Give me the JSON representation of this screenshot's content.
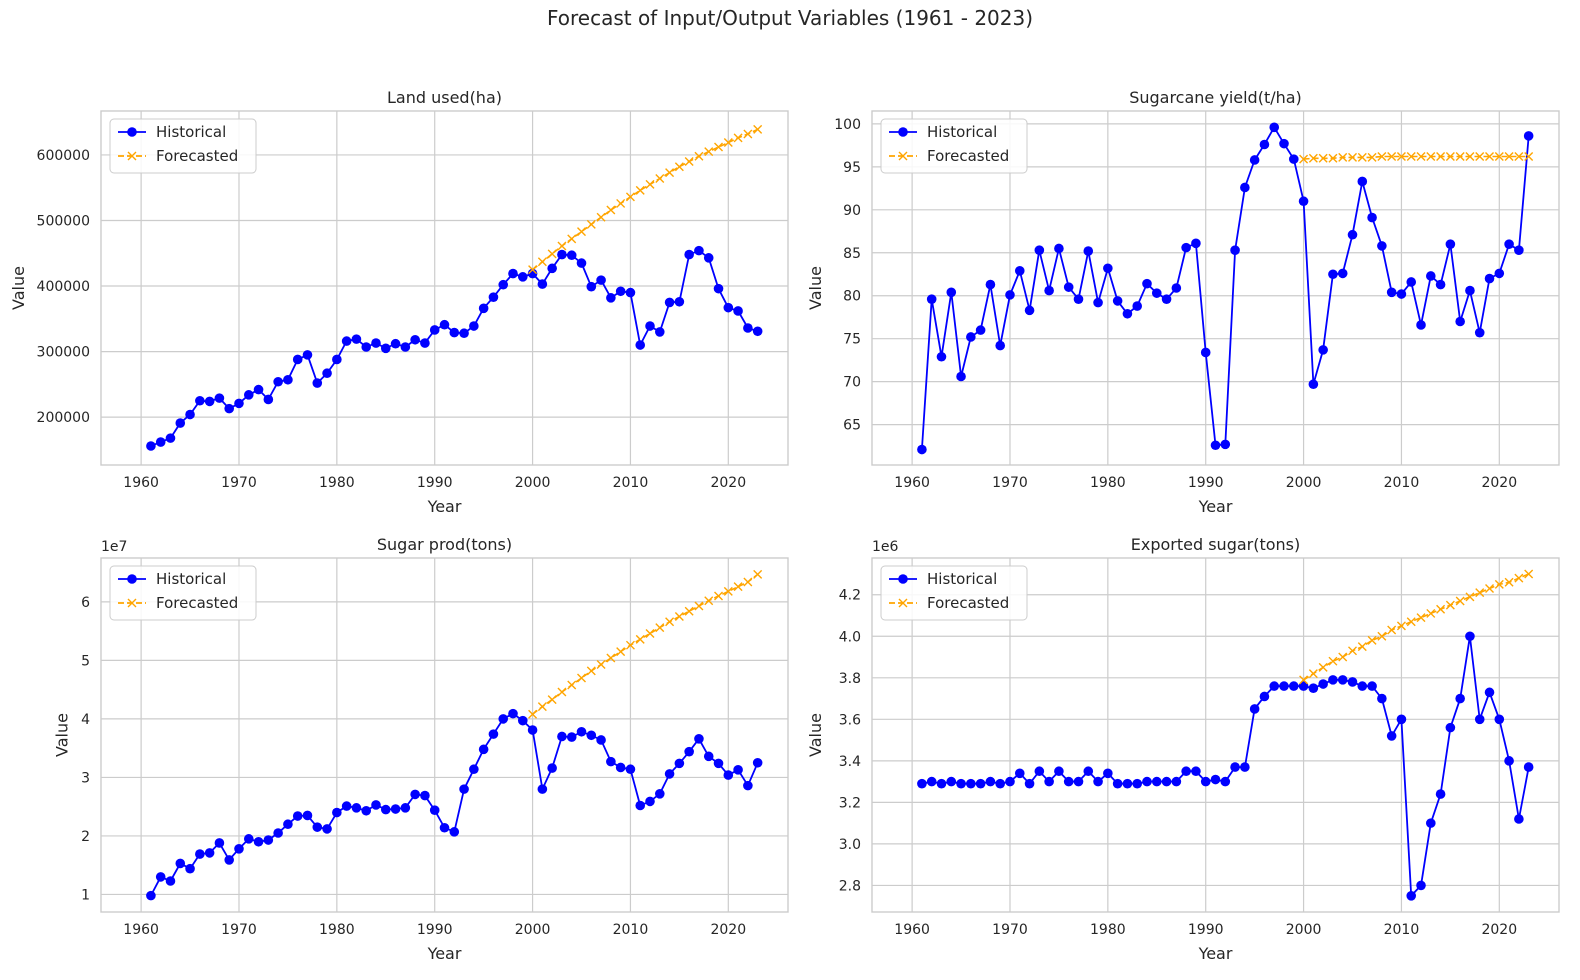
{
  "figure_title": "Forecast of Input/Output Variables (1961 - 2023)",
  "chart_data": [
    {
      "type": "line",
      "title": "Land used(ha)",
      "xlabel": "Year",
      "ylabel": "Value",
      "offset_label": "",
      "xlim": [
        1955.9,
        2026.1
      ],
      "ylim": [
        127000,
        667000
      ],
      "xticks": [
        1960,
        1970,
        1980,
        1990,
        2000,
        2010,
        2020
      ],
      "xtick_labels": [
        "1960",
        "1970",
        "1980",
        "1990",
        "2000",
        "2010",
        "2020"
      ],
      "yticks": [
        200000,
        300000,
        400000,
        500000,
        600000
      ],
      "ytick_labels": [
        "200000",
        "300000",
        "400000",
        "500000",
        "600000"
      ],
      "grid": true,
      "legend": "upper-left",
      "series": [
        {
          "name": "Historical",
          "color": "#0000ff",
          "marker": "circle",
          "linestyle": "solid",
          "x": [
            1961,
            1962,
            1963,
            1964,
            1965,
            1966,
            1967,
            1968,
            1969,
            1970,
            1971,
            1972,
            1973,
            1974,
            1975,
            1976,
            1977,
            1978,
            1979,
            1980,
            1981,
            1982,
            1983,
            1984,
            1985,
            1986,
            1987,
            1988,
            1989,
            1990,
            1991,
            1992,
            1993,
            1994,
            1995,
            1996,
            1997,
            1998,
            1999,
            2000,
            2001,
            2002,
            2003,
            2004,
            2005,
            2006,
            2007,
            2008,
            2009,
            2010,
            2011,
            2012,
            2013,
            2014,
            2015,
            2016,
            2017,
            2018,
            2019,
            2020,
            2021,
            2022,
            2023
          ],
          "y": [
            156000,
            162000,
            168000,
            191000,
            204000,
            225000,
            224000,
            229000,
            213000,
            221000,
            234000,
            242000,
            227000,
            254000,
            257000,
            288000,
            295000,
            252000,
            267000,
            288000,
            316000,
            319000,
            307000,
            313000,
            305000,
            312000,
            307000,
            318000,
            313000,
            333000,
            341000,
            329000,
            328000,
            339000,
            366000,
            383000,
            402000,
            419000,
            414000,
            419000,
            403000,
            427000,
            448000,
            447000,
            435000,
            399000,
            409000,
            382000,
            392000,
            390000,
            310000,
            339000,
            330000,
            375000,
            376000,
            448000,
            454000,
            443000,
            396000,
            367000,
            362000,
            336000,
            331000
          ]
        },
        {
          "name": "Forecasted",
          "color": "#ffa500",
          "marker": "x",
          "linestyle": "dashed",
          "x": [
            2000,
            2001,
            2002,
            2003,
            2004,
            2005,
            2006,
            2007,
            2008,
            2009,
            2010,
            2011,
            2012,
            2013,
            2014,
            2015,
            2016,
            2017,
            2018,
            2019,
            2020,
            2021,
            2022,
            2023
          ],
          "y": [
            425000,
            437000,
            449000,
            461000,
            472000,
            483000,
            494000,
            505000,
            516000,
            526000,
            536000,
            546000,
            555000,
            564000,
            573000,
            582000,
            590000,
            598000,
            605000,
            612000,
            619000,
            626000,
            632000,
            639000
          ]
        }
      ]
    },
    {
      "type": "line",
      "title": "Sugarcane yield(t/ha)",
      "xlabel": "Year",
      "ylabel": "Value",
      "offset_label": "",
      "xlim": [
        1955.9,
        2026.1
      ],
      "ylim": [
        60.3,
        101.5
      ],
      "xticks": [
        1960,
        1970,
        1980,
        1990,
        2000,
        2010,
        2020
      ],
      "xtick_labels": [
        "1960",
        "1970",
        "1980",
        "1990",
        "2000",
        "2010",
        "2020"
      ],
      "yticks": [
        65,
        70,
        75,
        80,
        85,
        90,
        95,
        100
      ],
      "ytick_labels": [
        "65",
        "70",
        "75",
        "80",
        "85",
        "90",
        "95",
        "100"
      ],
      "grid": true,
      "legend": "upper-left",
      "series": [
        {
          "name": "Historical",
          "color": "#0000ff",
          "marker": "circle",
          "linestyle": "solid",
          "x": [
            1961,
            1962,
            1963,
            1964,
            1965,
            1966,
            1967,
            1968,
            1969,
            1970,
            1971,
            1972,
            1973,
            1974,
            1975,
            1976,
            1977,
            1978,
            1979,
            1980,
            1981,
            1982,
            1983,
            1984,
            1985,
            1986,
            1987,
            1988,
            1989,
            1990,
            1991,
            1992,
            1993,
            1994,
            1995,
            1996,
            1997,
            1998,
            1999,
            2000,
            2001,
            2002,
            2003,
            2004,
            2005,
            2006,
            2007,
            2008,
            2009,
            2010,
            2011,
            2012,
            2013,
            2014,
            2015,
            2016,
            2017,
            2018,
            2019,
            2020,
            2021,
            2022,
            2023
          ],
          "y": [
            62.1,
            79.6,
            72.9,
            80.4,
            70.6,
            75.2,
            76.0,
            81.3,
            74.2,
            80.1,
            82.9,
            78.3,
            85.3,
            80.6,
            85.5,
            81.0,
            79.6,
            85.2,
            79.2,
            83.2,
            79.4,
            77.9,
            78.8,
            81.4,
            80.3,
            79.6,
            80.9,
            85.6,
            86.1,
            73.4,
            62.6,
            62.7,
            85.3,
            92.6,
            95.8,
            97.6,
            99.6,
            97.7,
            95.9,
            91.0,
            69.7,
            73.7,
            82.5,
            82.6,
            87.1,
            93.3,
            89.1,
            85.8,
            80.4,
            80.2,
            81.6,
            76.6,
            82.3,
            81.3,
            86.0,
            77.0,
            80.6,
            75.7,
            82.0,
            82.6,
            86.0,
            85.3,
            98.6
          ]
        },
        {
          "name": "Forecasted",
          "color": "#ffa500",
          "marker": "x",
          "linestyle": "dashed",
          "x": [
            2000,
            2001,
            2002,
            2003,
            2004,
            2005,
            2006,
            2007,
            2008,
            2009,
            2010,
            2011,
            2012,
            2013,
            2014,
            2015,
            2016,
            2017,
            2018,
            2019,
            2020,
            2021,
            2022,
            2023
          ],
          "y": [
            95.9,
            96.0,
            96.0,
            96.0,
            96.1,
            96.1,
            96.1,
            96.1,
            96.2,
            96.2,
            96.2,
            96.2,
            96.2,
            96.2,
            96.2,
            96.2,
            96.2,
            96.2,
            96.2,
            96.2,
            96.2,
            96.2,
            96.2,
            96.2
          ]
        }
      ]
    },
    {
      "type": "line",
      "title": "Sugar prod(tons)",
      "xlabel": "Year",
      "ylabel": "Value",
      "offset_label": "1e7",
      "xlim": [
        1955.9,
        2026.1
      ],
      "ylim": [
        0.7,
        6.75
      ],
      "xticks": [
        1960,
        1970,
        1980,
        1990,
        2000,
        2010,
        2020
      ],
      "xtick_labels": [
        "1960",
        "1970",
        "1980",
        "1990",
        "2000",
        "2010",
        "2020"
      ],
      "yticks": [
        1,
        2,
        3,
        4,
        5,
        6
      ],
      "ytick_labels": [
        "1",
        "2",
        "3",
        "4",
        "5",
        "6"
      ],
      "grid": true,
      "legend": "upper-left",
      "series": [
        {
          "name": "Historical",
          "color": "#0000ff",
          "marker": "circle",
          "linestyle": "solid",
          "x": [
            1961,
            1962,
            1963,
            1964,
            1965,
            1966,
            1967,
            1968,
            1969,
            1970,
            1971,
            1972,
            1973,
            1974,
            1975,
            1976,
            1977,
            1978,
            1979,
            1980,
            1981,
            1982,
            1983,
            1984,
            1985,
            1986,
            1987,
            1988,
            1989,
            1990,
            1991,
            1992,
            1993,
            1994,
            1995,
            1996,
            1997,
            1998,
            1999,
            2000,
            2001,
            2002,
            2003,
            2004,
            2005,
            2006,
            2007,
            2008,
            2009,
            2010,
            2011,
            2012,
            2013,
            2014,
            2015,
            2016,
            2017,
            2018,
            2019,
            2020,
            2021,
            2022,
            2023
          ],
          "y": [
            0.98,
            1.3,
            1.23,
            1.53,
            1.44,
            1.69,
            1.71,
            1.88,
            1.59,
            1.78,
            1.95,
            1.9,
            1.93,
            2.05,
            2.2,
            2.34,
            2.35,
            2.15,
            2.12,
            2.4,
            2.51,
            2.48,
            2.43,
            2.53,
            2.45,
            2.46,
            2.48,
            2.71,
            2.69,
            2.44,
            2.14,
            2.07,
            2.8,
            3.14,
            3.48,
            3.74,
            4.0,
            4.09,
            3.97,
            3.81,
            2.8,
            3.16,
            3.7,
            3.69,
            3.78,
            3.72,
            3.64,
            3.27,
            3.17,
            3.14,
            2.52,
            2.59,
            2.72,
            3.06,
            3.24,
            3.44,
            3.66,
            3.36,
            3.24,
            3.04,
            3.13,
            2.86,
            3.25
          ]
        },
        {
          "name": "Forecasted",
          "color": "#ffa500",
          "marker": "x",
          "linestyle": "dashed",
          "x": [
            2000,
            2001,
            2002,
            2003,
            2004,
            2005,
            2006,
            2007,
            2008,
            2009,
            2010,
            2011,
            2012,
            2013,
            2014,
            2015,
            2016,
            2017,
            2018,
            2019,
            2020,
            2021,
            2022,
            2023
          ],
          "y": [
            4.08,
            4.21,
            4.33,
            4.46,
            4.58,
            4.7,
            4.82,
            4.93,
            5.04,
            5.15,
            5.26,
            5.36,
            5.46,
            5.56,
            5.66,
            5.75,
            5.84,
            5.93,
            6.02,
            6.1,
            6.18,
            6.26,
            6.34,
            6.47
          ]
        }
      ]
    },
    {
      "type": "line",
      "title": "Exported sugar(tons)",
      "xlabel": "Year",
      "ylabel": "Value",
      "offset_label": "1e6",
      "xlim": [
        1955.9,
        2026.1
      ],
      "ylim": [
        2.672,
        4.377
      ],
      "xticks": [
        1960,
        1970,
        1980,
        1990,
        2000,
        2010,
        2020
      ],
      "xtick_labels": [
        "1960",
        "1970",
        "1980",
        "1990",
        "2000",
        "2010",
        "2020"
      ],
      "yticks": [
        2.8,
        3.0,
        3.2,
        3.4,
        3.6,
        3.8,
        4.0,
        4.2
      ],
      "ytick_labels": [
        "2.8",
        "3.0",
        "3.2",
        "3.4",
        "3.6",
        "3.8",
        "4.0",
        "4.2"
      ],
      "grid": true,
      "legend": "upper-left",
      "series": [
        {
          "name": "Historical",
          "color": "#0000ff",
          "marker": "circle",
          "linestyle": "solid",
          "x": [
            1961,
            1962,
            1963,
            1964,
            1965,
            1966,
            1967,
            1968,
            1969,
            1970,
            1971,
            1972,
            1973,
            1974,
            1975,
            1976,
            1977,
            1978,
            1979,
            1980,
            1981,
            1982,
            1983,
            1984,
            1985,
            1986,
            1987,
            1988,
            1989,
            1990,
            1991,
            1992,
            1993,
            1994,
            1995,
            1996,
            1997,
            1998,
            1999,
            2000,
            2001,
            2002,
            2003,
            2004,
            2005,
            2006,
            2007,
            2008,
            2009,
            2010,
            2011,
            2012,
            2013,
            2014,
            2015,
            2016,
            2017,
            2018,
            2019,
            2020,
            2021,
            2022,
            2023
          ],
          "y": [
            3.29,
            3.3,
            3.29,
            3.3,
            3.29,
            3.29,
            3.29,
            3.3,
            3.29,
            3.3,
            3.34,
            3.29,
            3.35,
            3.3,
            3.35,
            3.3,
            3.3,
            3.35,
            3.3,
            3.34,
            3.29,
            3.29,
            3.29,
            3.3,
            3.3,
            3.3,
            3.3,
            3.35,
            3.35,
            3.3,
            3.31,
            3.3,
            3.37,
            3.37,
            3.65,
            3.71,
            3.76,
            3.76,
            3.76,
            3.76,
            3.75,
            3.77,
            3.79,
            3.79,
            3.78,
            3.76,
            3.76,
            3.7,
            3.52,
            3.6,
            2.75,
            2.8,
            3.1,
            3.24,
            3.56,
            3.7,
            4.0,
            3.6,
            3.73,
            3.6,
            3.4,
            3.12,
            3.37
          ]
        },
        {
          "name": "Forecasted",
          "color": "#ffa500",
          "marker": "x",
          "linestyle": "dashed",
          "x": [
            2000,
            2001,
            2002,
            2003,
            2004,
            2005,
            2006,
            2007,
            2008,
            2009,
            2010,
            2011,
            2012,
            2013,
            2014,
            2015,
            2016,
            2017,
            2018,
            2019,
            2020,
            2021,
            2022,
            2023
          ],
          "y": [
            3.79,
            3.82,
            3.85,
            3.88,
            3.9,
            3.93,
            3.95,
            3.98,
            4.0,
            4.03,
            4.05,
            4.07,
            4.09,
            4.11,
            4.13,
            4.15,
            4.17,
            4.19,
            4.21,
            4.23,
            4.25,
            4.26,
            4.28,
            4.3
          ]
        }
      ]
    }
  ]
}
